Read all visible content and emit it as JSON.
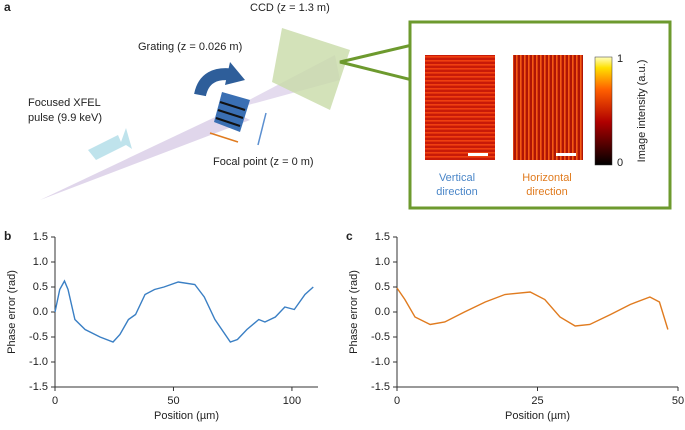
{
  "diagram": {
    "panel_label": "a",
    "ccd": "CCD (z = 1.3 m)",
    "grating": "Grating (z = 0.026 m)",
    "pulse": [
      "Focused XFEL",
      "pulse (9.9 keV)"
    ],
    "focal_point": "Focal point (z = 0 m)",
    "colorbar_max": "1",
    "colorbar_min": "0",
    "colorbar_label": "Image intensity (a.u.)",
    "vertical": [
      "Vertical",
      "direction"
    ],
    "horizontal": [
      "Horizontal",
      "direction"
    ]
  },
  "chart_data": [
    {
      "type": "line",
      "panel_label": "b",
      "xlabel": "Position (µm)",
      "ylabel": "Phase error (rad)",
      "color": "#3a7fc4",
      "x": [
        0,
        2,
        4,
        5.5,
        8.4,
        12.7,
        19,
        24.5,
        27.4,
        31,
        34,
        38,
        42,
        46,
        52,
        59,
        63,
        67.5,
        74,
        77,
        81,
        86,
        88.6,
        93,
        97,
        101,
        105.5,
        109
      ],
      "values": [
        0.0,
        0.45,
        0.62,
        0.45,
        -0.15,
        -0.35,
        -0.5,
        -0.6,
        -0.45,
        -0.15,
        -0.05,
        0.35,
        0.45,
        0.5,
        0.6,
        0.55,
        0.3,
        -0.15,
        -0.6,
        -0.55,
        -0.35,
        -0.15,
        -0.2,
        -0.1,
        0.1,
        0.05,
        0.35,
        0.5
      ],
      "xlim": [
        0,
        111
      ],
      "xticks": [
        0,
        50,
        100
      ],
      "ylim": [
        -1.5,
        1.5
      ],
      "yticks": [
        -1.5,
        {
          "value": -1,
          "label": "-1.0"
        },
        -0.5,
        {
          "value": 0,
          "label": "0.0"
        },
        0.5,
        {
          "value": 1,
          "label": "1.0"
        },
        1.5
      ]
    },
    {
      "type": "line",
      "panel_label": "c",
      "xlabel": "Position (µm)",
      "ylabel": "Phase error (rad)",
      "color": "#e07b1f",
      "x": [
        0,
        1.4,
        3.2,
        5.9,
        8.5,
        12,
        15.7,
        19.2,
        23.7,
        26.3,
        29,
        31.7,
        34.3,
        38,
        41.5,
        45,
        46.7,
        48.2
      ],
      "values": [
        0.48,
        0.25,
        -0.1,
        -0.25,
        -0.2,
        0.0,
        0.2,
        0.35,
        0.4,
        0.25,
        -0.1,
        -0.28,
        -0.25,
        -0.05,
        0.15,
        0.3,
        0.2,
        -0.35
      ],
      "xlim": [
        0,
        50
      ],
      "xticks": [
        0,
        25,
        50
      ],
      "ylim": [
        -1.5,
        1.5
      ],
      "yticks": [
        -1.5,
        {
          "value": -1,
          "label": "-1.0"
        },
        -0.5,
        {
          "value": 0,
          "label": "0.0"
        },
        0.5,
        {
          "value": 1,
          "label": "1.0"
        },
        1.5
      ]
    }
  ]
}
